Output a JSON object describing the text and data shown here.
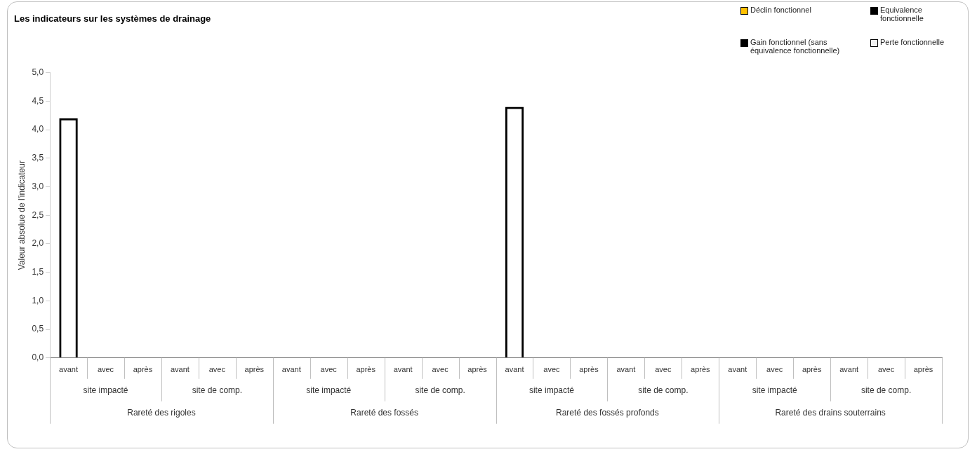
{
  "chart_data": {
    "type": "bar",
    "title": "Les indicateurs sur les systèmes de drainage",
    "ylabel": "Valeur absolue de l'indicateur",
    "categories": [
      "avant",
      "avec",
      "après",
      "avant",
      "avec",
      "après",
      "avant",
      "avec",
      "après",
      "avant",
      "avec",
      "après",
      "avant",
      "avec",
      "après",
      "avant",
      "avec",
      "après",
      "avant",
      "avec",
      "après",
      "avant",
      "avec",
      "après"
    ],
    "annotations": [
      "site impacté",
      "site de comp.",
      "site impacté",
      "site de comp.",
      "site impacté",
      "site de comp.",
      "site impacté",
      "site de comp.",
      "Rareté des rigoles",
      "Rareté des fossés",
      "Rareté des fossés profonds",
      "Rareté des drains souterrains"
    ],
    "series": [
      {
        "name": "Déclin fonctionnel",
        "color": "#ffc000",
        "values": [
          null,
          null,
          null,
          null,
          null,
          null,
          null,
          null,
          null,
          null,
          null,
          null,
          null,
          null,
          null,
          null,
          null,
          null,
          null,
          null,
          null,
          null,
          null,
          null
        ]
      },
      {
        "name": "Equivalence fonctionnelle",
        "color": "#000000",
        "values": [
          null,
          null,
          null,
          null,
          null,
          null,
          null,
          null,
          null,
          null,
          null,
          null,
          null,
          null,
          null,
          null,
          null,
          null,
          null,
          null,
          null,
          null,
          null,
          null
        ]
      },
      {
        "name": "Gain fonctionnel (sans équivalence fonctionnelle)",
        "color": "#000000",
        "values": [
          4.2,
          null,
          null,
          null,
          null,
          null,
          null,
          null,
          null,
          null,
          null,
          null,
          4.4,
          null,
          null,
          null,
          null,
          null,
          null,
          null,
          null,
          null,
          null,
          null
        ]
      },
      {
        "name": "Perte fonctionnelle",
        "color": "#f2f2f2",
        "values": [
          null,
          null,
          null,
          null,
          null,
          null,
          null,
          null,
          null,
          null,
          null,
          null,
          null,
          null,
          null,
          null,
          null,
          null,
          null,
          null,
          null,
          null,
          null,
          null
        ]
      }
    ],
    "stacked": true,
    "ylim": [
      0,
      5
    ],
    "yticks": [
      {
        "value": 0,
        "label": "0,0"
      },
      {
        "value": 0.5,
        "label": "0,5"
      },
      {
        "value": 1,
        "label": "1,0"
      },
      {
        "value": 1.5,
        "label": "1,5"
      },
      {
        "value": 2,
        "label": "2,0"
      },
      {
        "value": 2.5,
        "label": "2,5"
      },
      {
        "value": 3,
        "label": "3,0"
      },
      {
        "value": 3.5,
        "label": "3,5"
      },
      {
        "value": 4,
        "label": "4,0"
      },
      {
        "value": 4.5,
        "label": "4,5"
      },
      {
        "value": 5,
        "label": "5,0"
      }
    ],
    "grid": false,
    "legend": "top right"
  }
}
